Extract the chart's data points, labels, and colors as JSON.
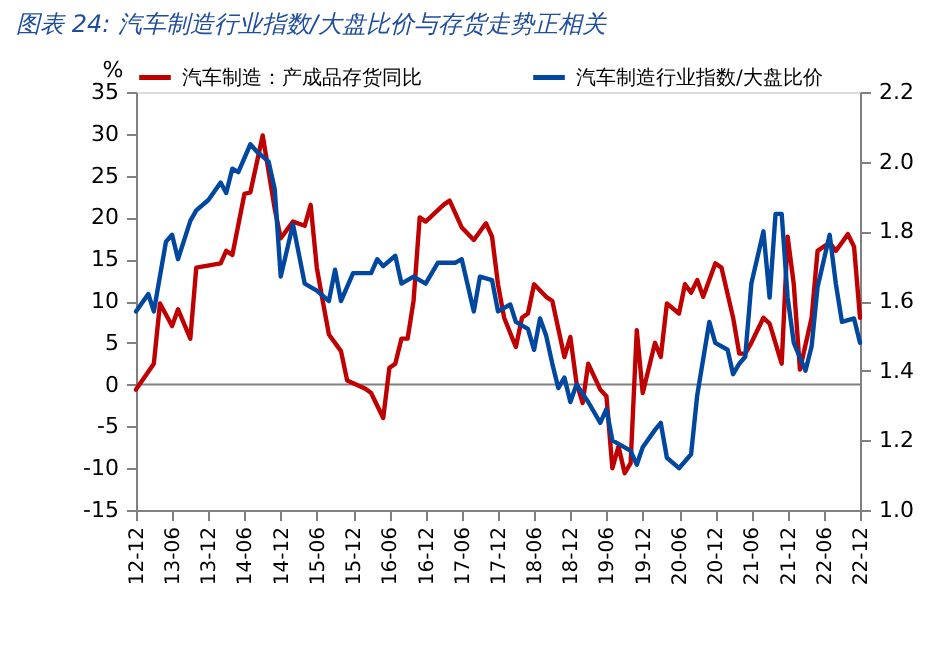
{
  "chart_data": {
    "type": "line",
    "title": "图表 24: 汽车制造行业指数/大盘比价与存货走势正相关",
    "ylabel": "%",
    "xlim": [
      "2012-12",
      "2022-12"
    ],
    "xticks": [
      {
        "value": "2012-12",
        "label": "12-12"
      },
      {
        "value": "2013-06",
        "label": "13-06"
      },
      {
        "value": "2013-12",
        "label": "13-12"
      },
      {
        "value": "2014-06",
        "label": "14-06"
      },
      {
        "value": "2014-12",
        "label": "14-12"
      },
      {
        "value": "2015-06",
        "label": "15-06"
      },
      {
        "value": "2015-12",
        "label": "15-12"
      },
      {
        "value": "2016-06",
        "label": "16-06"
      },
      {
        "value": "2016-12",
        "label": "16-12"
      },
      {
        "value": "2017-06",
        "label": "17-06"
      },
      {
        "value": "2017-12",
        "label": "17-12"
      },
      {
        "value": "2018-06",
        "label": "18-06"
      },
      {
        "value": "2018-12",
        "label": "18-12"
      },
      {
        "value": "2019-06",
        "label": "19-06"
      },
      {
        "value": "2019-12",
        "label": "19-12"
      },
      {
        "value": "2020-06",
        "label": "20-06"
      },
      {
        "value": "2020-12",
        "label": "20-12"
      },
      {
        "value": "2021-06",
        "label": "21-06"
      },
      {
        "value": "2021-12",
        "label": "21-12"
      },
      {
        "value": "2022-06",
        "label": "22-06"
      },
      {
        "value": "2022-12",
        "label": "22-12"
      }
    ],
    "ylim": [
      -15,
      35
    ],
    "yticks": [
      -15,
      -10,
      -5,
      0,
      5,
      10,
      15,
      20,
      25,
      30,
      35
    ],
    "y2lim": [
      1.0,
      2.2
    ],
    "y2ticks": [
      {
        "value": 1.0,
        "label": "1.0"
      },
      {
        "value": 1.2,
        "label": "1.2"
      },
      {
        "value": 1.4,
        "label": "1.4"
      },
      {
        "value": 1.6,
        "label": "1.6"
      },
      {
        "value": 1.8,
        "label": "1.8"
      },
      {
        "value": 2.0,
        "label": "2.0"
      },
      {
        "value": 2.2,
        "label": "2.2"
      }
    ],
    "legend": "top",
    "grid": false,
    "ref_lines": [
      {
        "axis": "y",
        "value": 0,
        "color": "#808080"
      }
    ],
    "series": [
      {
        "name": "汽车制造：产成品存货同比",
        "color": "#c00000",
        "x": [
          "2012-12",
          "2013-03",
          "2013-04",
          "2013-06",
          "2013-07",
          "2013-09",
          "2013-10",
          "2014-02",
          "2014-03",
          "2014-04",
          "2014-06",
          "2014-07",
          "2014-09",
          "2014-11",
          "2014-12",
          "2015-02",
          "2015-04",
          "2015-05",
          "2015-06",
          "2015-07",
          "2015-08",
          "2015-10",
          "2015-11",
          "2016-02",
          "2016-03",
          "2016-05",
          "2016-06",
          "2016-07",
          "2016-08",
          "2016-09",
          "2016-10",
          "2016-11",
          "2016-12",
          "2017-03",
          "2017-04",
          "2017-06",
          "2017-08",
          "2017-10",
          "2017-11",
          "2017-12",
          "2018-01",
          "2018-03",
          "2018-04",
          "2018-05",
          "2018-06",
          "2018-08",
          "2018-09",
          "2018-11",
          "2018-12",
          "2019-01",
          "2019-02",
          "2019-03",
          "2019-05",
          "2019-06",
          "2019-07",
          "2019-08",
          "2019-09",
          "2019-10",
          "2019-11",
          "2019-12",
          "2020-02",
          "2020-03",
          "2020-04",
          "2020-06",
          "2020-07",
          "2020-08",
          "2020-09",
          "2020-10",
          "2020-12",
          "2021-01",
          "2021-03",
          "2021-04",
          "2021-05",
          "2021-06",
          "2021-08",
          "2021-09",
          "2021-11",
          "2021-12",
          "2022-01",
          "2022-02",
          "2022-04",
          "2022-05",
          "2022-07",
          "2022-08",
          "2022-09",
          "2022-10",
          "2022-11",
          "2022-12"
        ],
        "values": [
          -0.6,
          2.5,
          9.7,
          7,
          9,
          5.5,
          14,
          14.5,
          16,
          15.5,
          22.8,
          23,
          29.8,
          21,
          17.5,
          19.5,
          19,
          21.5,
          14,
          10,
          6,
          4,
          0.5,
          -0.5,
          -1,
          -4,
          2,
          2.5,
          5.5,
          5.5,
          10,
          20,
          19.5,
          21.5,
          22,
          18.8,
          17.3,
          19.3,
          17.7,
          12,
          8,
          4.5,
          8,
          8.5,
          12,
          10.5,
          10,
          3.3,
          5.7,
          0.2,
          -2.2,
          2.5,
          -0.6,
          -1.4,
          -10,
          -7.4,
          -10.6,
          -9.4,
          6.5,
          -1,
          5,
          3.3,
          9.7,
          8.5,
          12,
          11,
          12.5,
          10.5,
          14.5,
          14,
          8,
          3.7,
          3.7,
          5,
          8,
          7.3,
          2.5,
          17.7,
          12,
          1.8,
          8,
          16,
          17,
          16,
          17,
          18,
          16.5,
          8
        ]
      },
      {
        "name": "汽车制造行业指数/大盘比价",
        "color": "#0047a0",
        "axis": "y2",
        "x": [
          "2012-12",
          "2013-02",
          "2013-03",
          "2013-05",
          "2013-06",
          "2013-07",
          "2013-09",
          "2013-10",
          "2013-12",
          "2014-02",
          "2014-03",
          "2014-04",
          "2014-05",
          "2014-07",
          "2014-08",
          "2014-10",
          "2014-11",
          "2014-12",
          "2015-02",
          "2015-04",
          "2015-06",
          "2015-08",
          "2015-09",
          "2015-10",
          "2015-12",
          "2016-03",
          "2016-04",
          "2016-05",
          "2016-07",
          "2016-08",
          "2016-10",
          "2016-12",
          "2017-02",
          "2017-05",
          "2017-06",
          "2017-08",
          "2017-09",
          "2017-11",
          "2017-12",
          "2018-02",
          "2018-03",
          "2018-05",
          "2018-06",
          "2018-07",
          "2018-08",
          "2018-09",
          "2018-10",
          "2018-11",
          "2018-12",
          "2019-01",
          "2019-03",
          "2019-05",
          "2019-06",
          "2019-07",
          "2019-09",
          "2019-10",
          "2019-11",
          "2019-12",
          "2020-02",
          "2020-03",
          "2020-04",
          "2020-06",
          "2020-08",
          "2020-09",
          "2020-11",
          "2020-12",
          "2021-02",
          "2021-03",
          "2021-04",
          "2021-05",
          "2021-06",
          "2021-08",
          "2021-09",
          "2021-10",
          "2021-11",
          "2021-12",
          "2022-01",
          "2022-03",
          "2022-04",
          "2022-05",
          "2022-07",
          "2022-08",
          "2022-09",
          "2022-11",
          "2022-12"
        ],
        "values": [
          1.57,
          1.62,
          1.57,
          1.77,
          1.79,
          1.72,
          1.83,
          1.86,
          1.89,
          1.94,
          1.91,
          1.98,
          1.97,
          2.05,
          2.03,
          2.0,
          1.92,
          1.67,
          1.82,
          1.65,
          1.63,
          1.6,
          1.69,
          1.6,
          1.68,
          1.68,
          1.72,
          1.7,
          1.73,
          1.65,
          1.67,
          1.65,
          1.71,
          1.71,
          1.72,
          1.57,
          1.67,
          1.66,
          1.57,
          1.59,
          1.54,
          1.52,
          1.46,
          1.55,
          1.5,
          1.42,
          1.35,
          1.38,
          1.31,
          1.36,
          1.31,
          1.25,
          1.29,
          1.2,
          1.18,
          1.17,
          1.13,
          1.18,
          1.23,
          1.25,
          1.15,
          1.12,
          1.16,
          1.33,
          1.54,
          1.48,
          1.46,
          1.39,
          1.42,
          1.44,
          1.65,
          1.8,
          1.61,
          1.85,
          1.85,
          1.61,
          1.48,
          1.4,
          1.47,
          1.64,
          1.79,
          1.65,
          1.54,
          1.55,
          1.48
        ]
      }
    ]
  }
}
